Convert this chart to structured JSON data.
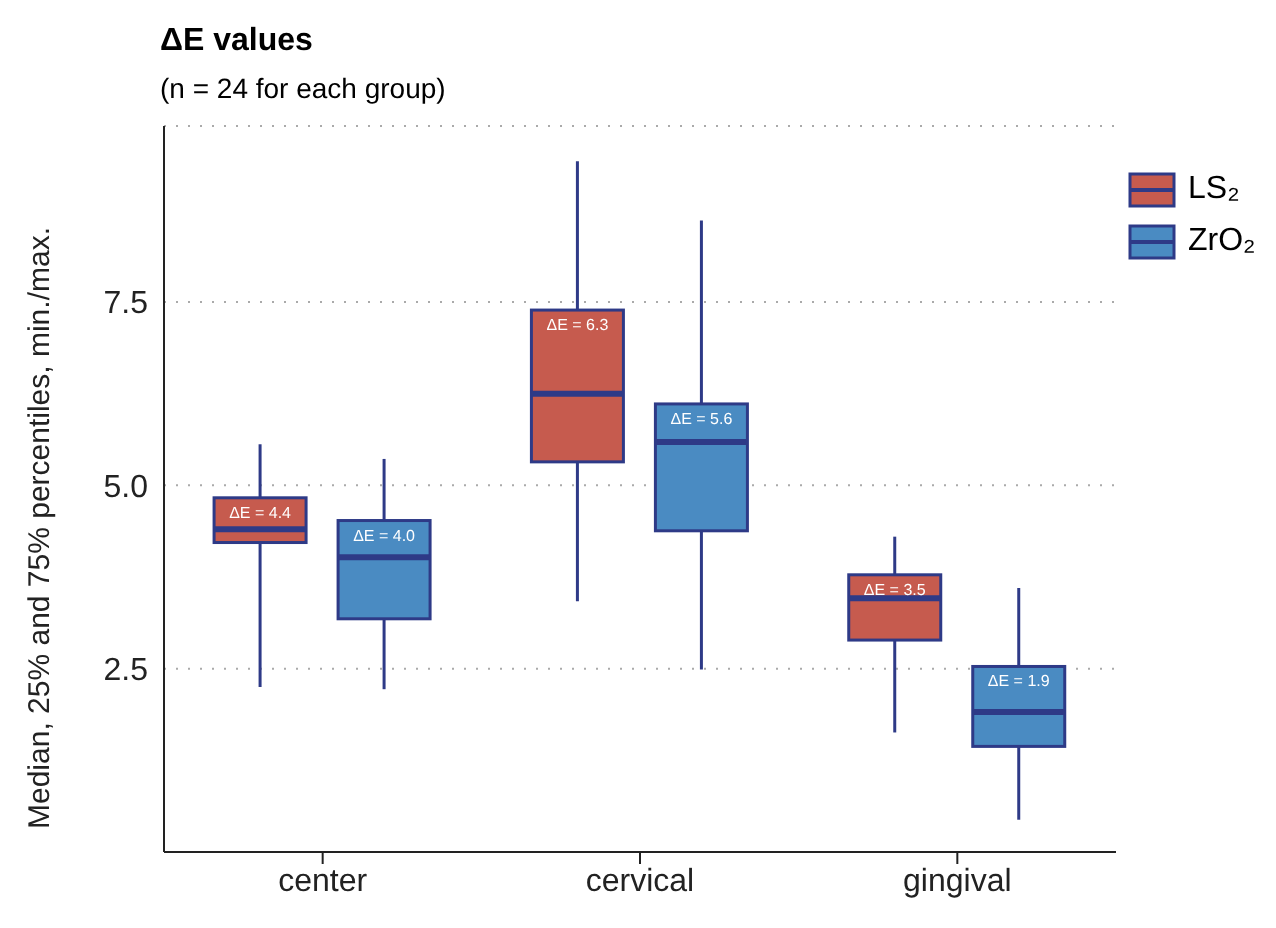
{
  "chart_data": {
    "type": "box",
    "title": "ΔE values",
    "subtitle": "(n = 24 for each group)",
    "ylabel": "Median, 25% and 75% percentiles, min./max.",
    "categories": [
      "center",
      "cervical",
      "gingival"
    ],
    "series": [
      {
        "name": "LS₂",
        "color": "#c65b4e",
        "value_labels": [
          "ΔE = 4.4",
          "ΔE = 6.3",
          "ΔE = 3.5"
        ],
        "boxes": [
          {
            "low": 2.25,
            "q1": 4.22,
            "median": 4.4,
            "q3": 4.83,
            "high": 5.56
          },
          {
            "low": 3.42,
            "q1": 5.32,
            "median": 6.25,
            "q3": 7.39,
            "high": 9.42
          },
          {
            "low": 1.63,
            "q1": 2.89,
            "median": 3.46,
            "q3": 3.78,
            "high": 4.3
          }
        ]
      },
      {
        "name": "ZrO₂",
        "color": "#4a8bc2",
        "value_labels": [
          "ΔE = 4.0",
          "ΔE = 5.6",
          "ΔE = 1.9"
        ],
        "boxes": [
          {
            "low": 2.22,
            "q1": 3.18,
            "median": 4.02,
            "q3": 4.52,
            "high": 5.36
          },
          {
            "low": 2.49,
            "q1": 4.38,
            "median": 5.59,
            "q3": 6.11,
            "high": 8.61
          },
          {
            "low": 0.44,
            "q1": 1.44,
            "median": 1.91,
            "q3": 2.53,
            "high": 3.6
          }
        ]
      }
    ],
    "ylim": [
      0,
      9.9
    ],
    "yticks": [
      2.5,
      {
        "value": 5,
        "label": "5.0"
      },
      7.5
    ],
    "grid": "y",
    "legend": "top right"
  }
}
